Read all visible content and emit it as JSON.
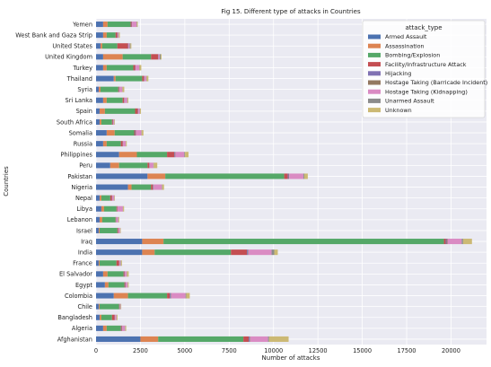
{
  "chart_data": {
    "type": "bar",
    "orientation": "horizontal",
    "stacked": true,
    "title": "Fig 15. Different type of attacks in Countries",
    "xlabel": "Number of attacks",
    "ylabel": "Countries",
    "xlim": [
      0,
      22000
    ],
    "xticks": [
      0,
      2500,
      5000,
      7500,
      10000,
      12500,
      15000,
      17500,
      20000
    ],
    "grid": true,
    "legend_title": "attack_type",
    "legend_position": "top-right",
    "categories": [
      "Afghanistan",
      "Algeria",
      "Bangladesh",
      "Chile",
      "Colombia",
      "Egypt",
      "El Salvador",
      "France",
      "India",
      "Iraq",
      "Israel",
      "Lebanon",
      "Libya",
      "Nepal",
      "Nigeria",
      "Pakistan",
      "Peru",
      "Philippines",
      "Russia",
      "Somalia",
      "South Africa",
      "Spain",
      "Sri Lanka",
      "Syria",
      "Thailand",
      "Turkey",
      "United Kingdom",
      "United States",
      "West Bank and Gaza Strip",
      "Yemen"
    ],
    "series": [
      {
        "name": "Armed Assault",
        "color": "#4c72b0",
        "values": [
          2500,
          400,
          200,
          150,
          1000,
          500,
          400,
          150,
          2600,
          2600,
          150,
          200,
          300,
          200,
          1800,
          2900,
          800,
          1300,
          400,
          600,
          200,
          200,
          400,
          150,
          1000,
          400,
          400,
          250,
          400,
          400
        ]
      },
      {
        "name": "Assassination",
        "color": "#dd8452",
        "values": [
          1000,
          200,
          100,
          50,
          800,
          200,
          250,
          50,
          700,
          1200,
          50,
          150,
          150,
          100,
          200,
          1000,
          500,
          1000,
          200,
          450,
          100,
          300,
          200,
          100,
          100,
          200,
          1100,
          100,
          200,
          250
        ]
      },
      {
        "name": "Bombing/Explosion",
        "color": "#55a868",
        "values": [
          4800,
          800,
          600,
          1100,
          2200,
          900,
          900,
          950,
          4300,
          15800,
          1000,
          750,
          700,
          500,
          1100,
          6700,
          1600,
          1700,
          800,
          1100,
          600,
          1700,
          900,
          1000,
          1500,
          1500,
          1600,
          850,
          500,
          1300
        ]
      },
      {
        "name": "Facility/Infrastructure Attack",
        "color": "#c44e52",
        "values": [
          300,
          50,
          150,
          30,
          150,
          50,
          50,
          150,
          900,
          100,
          50,
          30,
          40,
          100,
          100,
          200,
          100,
          400,
          100,
          50,
          50,
          150,
          80,
          50,
          100,
          100,
          400,
          600,
          100,
          50
        ]
      },
      {
        "name": "Hijacking",
        "color": "#8172b3",
        "values": [
          60,
          20,
          10,
          10,
          60,
          20,
          20,
          10,
          60,
          50,
          10,
          10,
          10,
          10,
          30,
          50,
          20,
          40,
          10,
          30,
          10,
          20,
          20,
          20,
          20,
          20,
          20,
          20,
          20,
          20
        ]
      },
      {
        "name": "Hostage Taking (Barricade Incident)",
        "color": "#937860",
        "values": [
          30,
          10,
          10,
          10,
          30,
          10,
          10,
          10,
          30,
          50,
          10,
          10,
          10,
          10,
          20,
          30,
          10,
          30,
          10,
          20,
          10,
          10,
          10,
          10,
          10,
          10,
          10,
          10,
          10,
          10
        ]
      },
      {
        "name": "Hostage Taking (Kidnapping)",
        "color": "#da8bc3",
        "values": [
          1000,
          150,
          80,
          30,
          800,
          100,
          100,
          60,
          1300,
          800,
          80,
          100,
          300,
          100,
          450,
          800,
          200,
          500,
          150,
          300,
          50,
          80,
          150,
          150,
          100,
          200,
          60,
          60,
          50,
          250
        ]
      },
      {
        "name": "Unarmed Assault",
        "color": "#8c8c8c",
        "values": [
          60,
          20,
          10,
          10,
          40,
          10,
          10,
          30,
          150,
          80,
          10,
          20,
          10,
          10,
          30,
          50,
          20,
          40,
          10,
          20,
          10,
          20,
          10,
          10,
          20,
          20,
          50,
          50,
          10,
          20
        ]
      },
      {
        "name": "Unknown",
        "color": "#ccb974",
        "values": [
          1100,
          50,
          50,
          30,
          200,
          50,
          100,
          50,
          200,
          500,
          30,
          40,
          60,
          30,
          100,
          200,
          200,
          200,
          50,
          100,
          30,
          50,
          50,
          100,
          100,
          100,
          50,
          50,
          50,
          50
        ]
      }
    ]
  }
}
